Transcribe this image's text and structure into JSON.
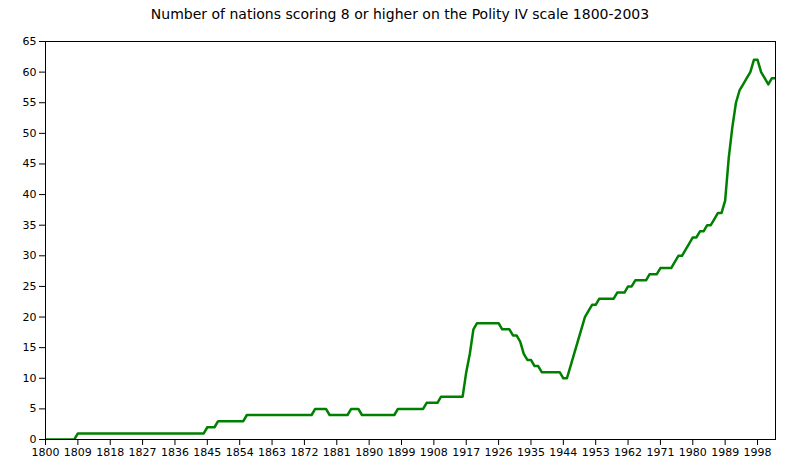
{
  "chart_data": {
    "type": "line",
    "title": "Number of nations scoring 8 or higher on the Polity IV scale 1800-2003",
    "color": "#008000",
    "grid": false,
    "xlim": [
      1800,
      2003
    ],
    "xticks": [
      1800,
      1809,
      1818,
      1827,
      1836,
      1845,
      1854,
      1863,
      1872,
      1881,
      1890,
      1899,
      1908,
      1917,
      1926,
      1935,
      1944,
      1953,
      1962,
      1971,
      1980,
      1989,
      1998
    ],
    "ylim": [
      0,
      65
    ],
    "yticks": [
      0,
      5,
      10,
      15,
      20,
      25,
      30,
      35,
      40,
      45,
      50,
      55,
      60,
      65
    ],
    "x": [
      1800,
      1801,
      1802,
      1803,
      1804,
      1805,
      1806,
      1807,
      1808,
      1809,
      1810,
      1811,
      1812,
      1813,
      1814,
      1815,
      1816,
      1817,
      1818,
      1819,
      1820,
      1821,
      1822,
      1823,
      1824,
      1825,
      1826,
      1827,
      1828,
      1829,
      1830,
      1831,
      1832,
      1833,
      1834,
      1835,
      1836,
      1837,
      1838,
      1839,
      1840,
      1841,
      1842,
      1843,
      1844,
      1845,
      1846,
      1847,
      1848,
      1849,
      1850,
      1851,
      1852,
      1853,
      1854,
      1855,
      1856,
      1857,
      1858,
      1859,
      1860,
      1861,
      1862,
      1863,
      1864,
      1865,
      1866,
      1867,
      1868,
      1869,
      1870,
      1871,
      1872,
      1873,
      1874,
      1875,
      1876,
      1877,
      1878,
      1879,
      1880,
      1881,
      1882,
      1883,
      1884,
      1885,
      1886,
      1887,
      1888,
      1889,
      1890,
      1891,
      1892,
      1893,
      1894,
      1895,
      1896,
      1897,
      1898,
      1899,
      1900,
      1901,
      1902,
      1903,
      1904,
      1905,
      1906,
      1907,
      1908,
      1909,
      1910,
      1911,
      1912,
      1913,
      1914,
      1915,
      1916,
      1917,
      1918,
      1919,
      1920,
      1921,
      1922,
      1923,
      1924,
      1925,
      1926,
      1927,
      1928,
      1929,
      1930,
      1931,
      1932,
      1933,
      1934,
      1935,
      1936,
      1937,
      1938,
      1939,
      1940,
      1941,
      1942,
      1943,
      1944,
      1945,
      1946,
      1947,
      1948,
      1949,
      1950,
      1951,
      1952,
      1953,
      1954,
      1955,
      1956,
      1957,
      1958,
      1959,
      1960,
      1961,
      1962,
      1963,
      1964,
      1965,
      1966,
      1967,
      1968,
      1969,
      1970,
      1971,
      1972,
      1973,
      1974,
      1975,
      1976,
      1977,
      1978,
      1979,
      1980,
      1981,
      1982,
      1983,
      1984,
      1985,
      1986,
      1987,
      1988,
      1989,
      1990,
      1991,
      1992,
      1993,
      1994,
      1995,
      1996,
      1997,
      1998,
      1999,
      2000,
      2001,
      2002,
      2003
    ],
    "values": [
      0,
      0,
      0,
      0,
      0,
      0,
      0,
      0,
      0,
      1,
      1,
      1,
      1,
      1,
      1,
      1,
      1,
      1,
      1,
      1,
      1,
      1,
      1,
      1,
      1,
      1,
      1,
      1,
      1,
      1,
      1,
      1,
      1,
      1,
      1,
      1,
      1,
      1,
      1,
      1,
      1,
      1,
      1,
      1,
      1,
      2,
      2,
      2,
      3,
      3,
      3,
      3,
      3,
      3,
      3,
      3,
      4,
      4,
      4,
      4,
      4,
      4,
      4,
      4,
      4,
      4,
      4,
      4,
      4,
      4,
      4,
      4,
      4,
      4,
      4,
      5,
      5,
      5,
      5,
      4,
      4,
      4,
      4,
      4,
      4,
      5,
      5,
      5,
      4,
      4,
      4,
      4,
      4,
      4,
      4,
      4,
      4,
      4,
      5,
      5,
      5,
      5,
      5,
      5,
      5,
      5,
      6,
      6,
      6,
      6,
      7,
      7,
      7,
      7,
      7,
      7,
      7,
      11,
      14,
      18,
      19,
      19,
      19,
      19,
      19,
      19,
      19,
      18,
      18,
      18,
      17,
      17,
      16,
      14,
      13,
      13,
      12,
      12,
      11,
      11,
      11,
      11,
      11,
      11,
      10,
      10,
      12,
      14,
      16,
      18,
      20,
      21,
      22,
      22,
      23,
      23,
      23,
      23,
      23,
      24,
      24,
      24,
      25,
      25,
      26,
      26,
      26,
      26,
      27,
      27,
      27,
      28,
      28,
      28,
      28,
      29,
      30,
      30,
      31,
      32,
      33,
      33,
      34,
      34,
      35,
      35,
      36,
      37,
      37,
      39,
      46,
      51,
      55,
      57,
      58,
      59,
      60,
      62,
      62,
      60,
      59,
      58,
      59,
      59
    ]
  }
}
